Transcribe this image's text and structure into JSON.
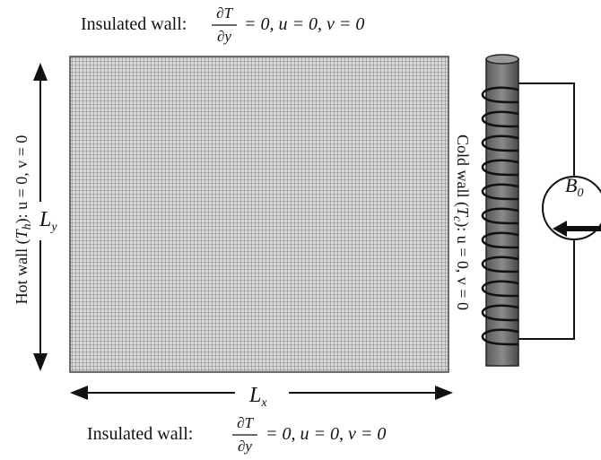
{
  "top_label": {
    "prefix": "Insulated wall:",
    "numerator": "∂T",
    "denominator": "∂y",
    "suffix": "= 0, u = 0, v = 0"
  },
  "bottom_label": {
    "prefix": "Insulated wall:",
    "numerator": "∂T",
    "denominator": "∂y",
    "suffix": "= 0, u = 0, v = 0"
  },
  "left_label": {
    "prefix": "Hot wall (",
    "symbol": "T",
    "subscript": "h",
    "suffix": "): u = 0, v = 0"
  },
  "right_label": {
    "prefix": "Cold wall (",
    "symbol": "T",
    "subscript": "c",
    "suffix": "): u = 0, v = 0"
  },
  "height_label": {
    "symbol": "L",
    "subscript": "y"
  },
  "width_label": {
    "symbol": "L",
    "subscript": "x"
  },
  "field_label": {
    "symbol": "B",
    "subscript": "0"
  }
}
